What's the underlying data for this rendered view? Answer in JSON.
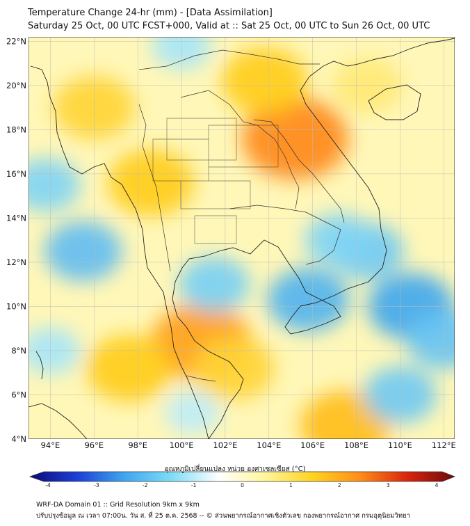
{
  "title": {
    "line1": "Temperature Change 24-hr (mm) - [Data Assimilation]",
    "line2": "Saturday 25 Oct, 00 UTC FCST+000, Valid at :: Sat 25 Oct, 00 UTC to Sun 26 Oct, 00 UTC"
  },
  "map": {
    "lat_labels": [
      "22°N",
      "20°N",
      "18°N",
      "16°N",
      "14°N",
      "12°N",
      "10°N",
      "8°N",
      "6°N",
      "4°N"
    ],
    "lon_labels": [
      "94°E",
      "96°E",
      "98°E",
      "100°E",
      "102°E",
      "104°E",
      "106°E",
      "108°E",
      "110°E",
      "112°E"
    ],
    "lat_values": [
      22,
      20,
      18,
      16,
      14,
      12,
      10,
      8,
      6,
      4
    ],
    "lon_values": [
      94,
      96,
      98,
      100,
      102,
      104,
      106,
      108,
      110,
      112
    ],
    "extent": {
      "lon_min": 93.0,
      "lon_max": 112.5,
      "lat_min": 4.0,
      "lat_max": 22.2
    }
  },
  "colorbar": {
    "label": "อุณหภูมิเปลี่ยนแปลง หน่วย องศาเซลเซียส (°C)",
    "tick_labels": [
      "-4",
      "-3",
      "-2",
      "-1",
      "0",
      "1",
      "2",
      "3",
      "4"
    ],
    "tick_values": [
      -4,
      -3,
      -2,
      -1,
      0,
      1,
      2,
      3,
      4
    ],
    "colors": [
      "#0a0a78",
      "#1b3fd6",
      "#3fa6ee",
      "#7fdcf7",
      "#ffffff",
      "#fff59a",
      "#ffd21e",
      "#ff8c19",
      "#d8240d",
      "#6e0a0a"
    ]
  },
  "footer": {
    "line1": "WRF-DA Domain 01 :: Grid Resolution 9km x 9km",
    "line2": "ปรับปรุงข้อมูล ณ เวลา 07:00น. วัน ส. ที่ 25 ต.ค. 2568 -- © ส่วนพยากรณ์อากาศเชิงตัวเลข กองพยากรณ์อากาศ กรมอุตุนิยมวิทยา"
  },
  "field_anomalies": [
    {
      "name": "northeast-laos-max",
      "lon": 105.2,
      "lat": 17.6,
      "value": 2.9
    },
    {
      "name": "north-vietnam-warm",
      "lon": 103.8,
      "lat": 20.2,
      "value": 2.0
    },
    {
      "name": "west-thailand-warm",
      "lon": 98.6,
      "lat": 15.6,
      "value": 2.0
    },
    {
      "name": "upper-myanmar-warm",
      "lon": 96.0,
      "lat": 19.0,
      "value": 1.8
    },
    {
      "name": "gulf-warm-core",
      "lon": 100.9,
      "lat": 8.4,
      "value": 2.6
    },
    {
      "name": "andaman-south-warm",
      "lon": 97.6,
      "lat": 7.2,
      "value": 2.0
    },
    {
      "name": "malay-east-warm",
      "lon": 102.4,
      "lat": 7.2,
      "value": 1.8
    },
    {
      "name": "south-china-sea-warm",
      "lon": 107.5,
      "lat": 4.6,
      "value": 2.2
    },
    {
      "name": "tonkin-gulf-warm",
      "lon": 108.5,
      "lat": 20.0,
      "value": 1.3
    },
    {
      "name": "andaman-sea-cool",
      "lon": 95.5,
      "lat": 12.5,
      "value": -1.6
    },
    {
      "name": "bay-of-bengal-cool",
      "lon": 93.8,
      "lat": 15.5,
      "value": -1.2
    },
    {
      "name": "thai-gulf-cool",
      "lon": 101.5,
      "lat": 11.0,
      "value": -1.3
    },
    {
      "name": "mekong-delta-cool",
      "lon": 105.8,
      "lat": 10.3,
      "value": -1.8
    },
    {
      "name": "scs-east-cool",
      "lon": 110.5,
      "lat": 10.0,
      "value": -2.0
    },
    {
      "name": "scs-central-cool",
      "lon": 108.5,
      "lat": 12.5,
      "value": -1.4
    },
    {
      "name": "cambodia-east-cool",
      "lon": 107.2,
      "lat": 13.0,
      "value": -1.2
    },
    {
      "name": "scs-south-cool",
      "lon": 110.0,
      "lat": 6.0,
      "value": -1.4
    },
    {
      "name": "borneo-west-cool",
      "lon": 112.0,
      "lat": 8.5,
      "value": -1.5
    },
    {
      "name": "north-myanmar-cool",
      "lon": 100.0,
      "lat": 21.8,
      "value": -0.8
    },
    {
      "name": "andaman-west-cool",
      "lon": 94.0,
      "lat": 8.0,
      "value": -0.8
    },
    {
      "name": "malay-pen-cool",
      "lon": 100.5,
      "lat": 5.2,
      "value": -0.6
    }
  ]
}
